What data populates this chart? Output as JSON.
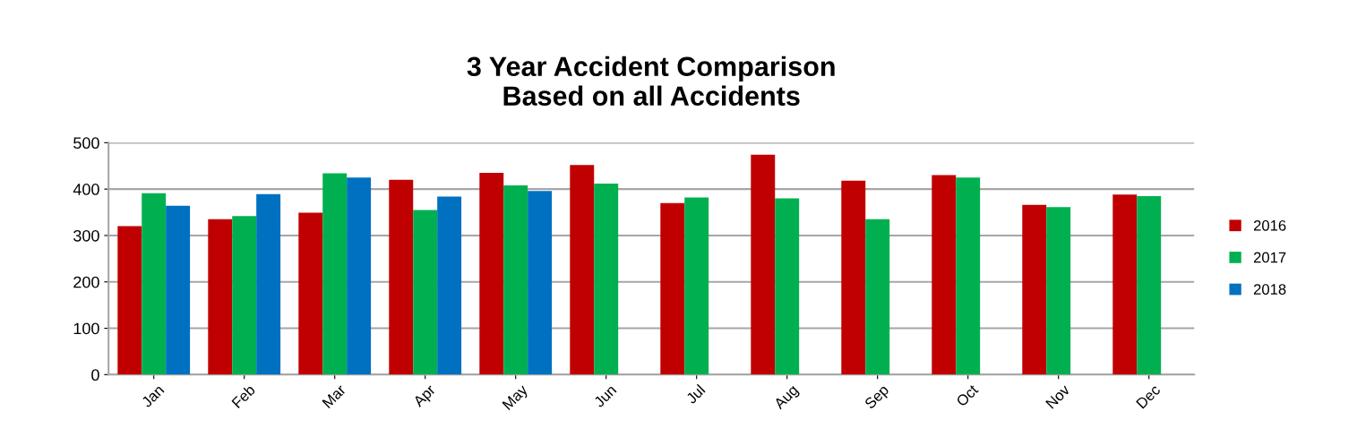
{
  "chart_data": {
    "type": "bar",
    "title": "3 Year Accident Comparison\nBased on all Accidents",
    "categories": [
      "Jan",
      "Feb",
      "Mar",
      "Apr",
      "May",
      "Jun",
      "Jul",
      "Aug",
      "Sep",
      "Oct",
      "Nov",
      "Dec"
    ],
    "series": [
      {
        "name": "2016",
        "color": "#c00000",
        "values": [
          320,
          335,
          349,
          420,
          435,
          452,
          370,
          474,
          418,
          430,
          366,
          388
        ]
      },
      {
        "name": "2017",
        "color": "#00b050",
        "values": [
          391,
          342,
          434,
          355,
          408,
          412,
          382,
          380,
          335,
          425,
          361,
          385
        ]
      },
      {
        "name": "2018",
        "color": "#0070c0",
        "values": [
          364,
          389,
          425,
          384,
          396,
          0,
          0,
          0,
          0,
          0,
          0,
          0
        ]
      }
    ],
    "ylim": [
      0,
      500
    ],
    "yticks": [
      0,
      100,
      200,
      300,
      400,
      500
    ],
    "grid": "y",
    "legend": "right"
  }
}
